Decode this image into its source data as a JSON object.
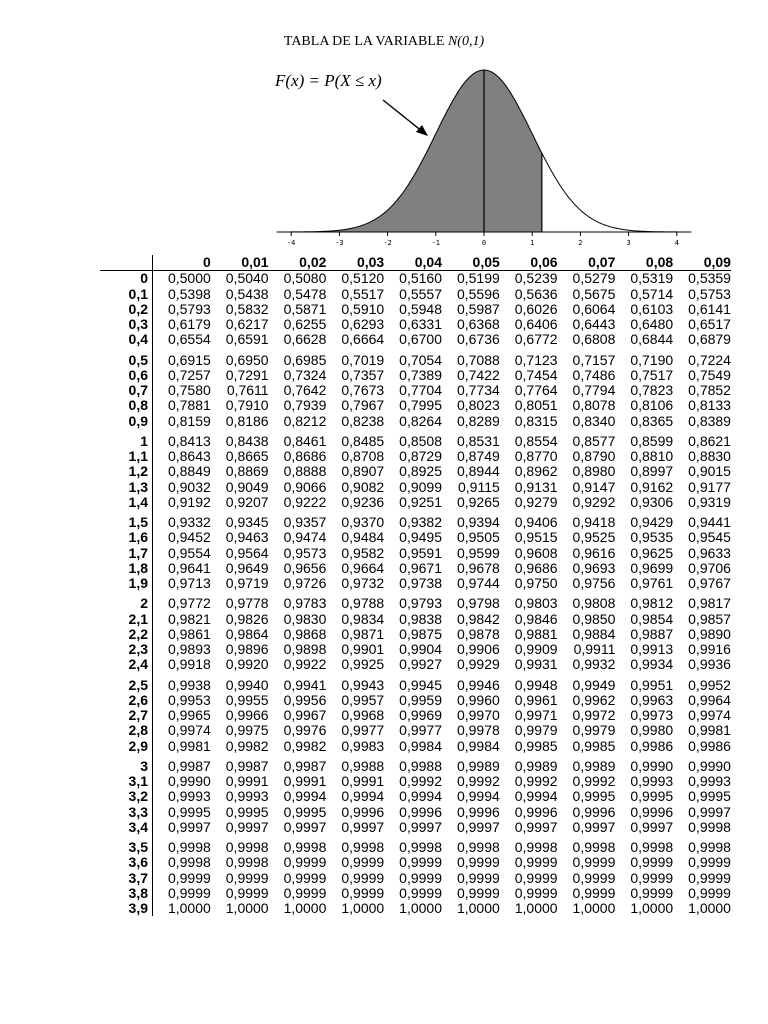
{
  "title": {
    "text": "TABLA DE LA VARIABLE",
    "dist": "N(0,1)"
  },
  "figure": {
    "formula": "F(x) = P(X ≤ x)",
    "shade_upper_bound": 1.2,
    "axis_ticks": [
      "-4",
      "-3",
      "-2",
      "-1",
      "0",
      "1",
      "2",
      "3",
      "4"
    ],
    "fill_color": "#808080"
  },
  "table": {
    "col_headers": [
      "0",
      "0,01",
      "0,02",
      "0,03",
      "0,04",
      "0,05",
      "0,06",
      "0,07",
      "0,08",
      "0,09"
    ],
    "rows": [
      {
        "z": "0",
        "v": [
          "0,5000",
          "0,5040",
          "0,5080",
          "0,5120",
          "0,5160",
          "0,5199",
          "0,5239",
          "0,5279",
          "0,5319",
          "0,5359"
        ]
      },
      {
        "z": "0,1",
        "v": [
          "0,5398",
          "0,5438",
          "0,5478",
          "0,5517",
          "0,5557",
          "0,5596",
          "0,5636",
          "0,5675",
          "0,5714",
          "0,5753"
        ]
      },
      {
        "z": "0,2",
        "v": [
          "0,5793",
          "0,5832",
          "0,5871",
          "0,5910",
          "0,5948",
          "0,5987",
          "0,6026",
          "0,6064",
          "0,6103",
          "0,6141"
        ]
      },
      {
        "z": "0,3",
        "v": [
          "0,6179",
          "0,6217",
          "0,6255",
          "0,6293",
          "0,6331",
          "0,6368",
          "0,6406",
          "0,6443",
          "0,6480",
          "0,6517"
        ]
      },
      {
        "z": "0,4",
        "v": [
          "0,6554",
          "0,6591",
          "0,6628",
          "0,6664",
          "0,6700",
          "0,6736",
          "0,6772",
          "0,6808",
          "0,6844",
          "0,6879"
        ]
      },
      {
        "z": "0,5",
        "v": [
          "0,6915",
          "0,6950",
          "0,6985",
          "0,7019",
          "0,7054",
          "0,7088",
          "0,7123",
          "0,7157",
          "0,7190",
          "0,7224"
        ]
      },
      {
        "z": "0,6",
        "v": [
          "0,7257",
          "0,7291",
          "0,7324",
          "0,7357",
          "0,7389",
          "0,7422",
          "0,7454",
          "0,7486",
          "0,7517",
          "0,7549"
        ]
      },
      {
        "z": "0,7",
        "v": [
          "0,7580",
          "0,7611",
          "0,7642",
          "0,7673",
          "0,7704",
          "0,7734",
          "0,7764",
          "0,7794",
          "0,7823",
          "0,7852"
        ]
      },
      {
        "z": "0,8",
        "v": [
          "0,7881",
          "0,7910",
          "0,7939",
          "0,7967",
          "0,7995",
          "0,8023",
          "0,8051",
          "0,8078",
          "0,8106",
          "0,8133"
        ]
      },
      {
        "z": "0,9",
        "v": [
          "0,8159",
          "0,8186",
          "0,8212",
          "0,8238",
          "0,8264",
          "0,8289",
          "0,8315",
          "0,8340",
          "0,8365",
          "0,8389"
        ]
      },
      {
        "z": "1",
        "v": [
          "0,8413",
          "0,8438",
          "0,8461",
          "0,8485",
          "0,8508",
          "0,8531",
          "0,8554",
          "0,8577",
          "0,8599",
          "0,8621"
        ]
      },
      {
        "z": "1,1",
        "v": [
          "0,8643",
          "0,8665",
          "0,8686",
          "0,8708",
          "0,8729",
          "0,8749",
          "0,8770",
          "0,8790",
          "0,8810",
          "0,8830"
        ]
      },
      {
        "z": "1,2",
        "v": [
          "0,8849",
          "0,8869",
          "0,8888",
          "0,8907",
          "0,8925",
          "0,8944",
          "0,8962",
          "0,8980",
          "0,8997",
          "0,9015"
        ]
      },
      {
        "z": "1,3",
        "v": [
          "0,9032",
          "0,9049",
          "0,9066",
          "0,9082",
          "0,9099",
          "0,9115",
          "0,9131",
          "0,9147",
          "0,9162",
          "0,9177"
        ]
      },
      {
        "z": "1,4",
        "v": [
          "0,9192",
          "0,9207",
          "0,9222",
          "0,9236",
          "0,9251",
          "0,9265",
          "0,9279",
          "0,9292",
          "0,9306",
          "0,9319"
        ]
      },
      {
        "z": "1,5",
        "v": [
          "0,9332",
          "0,9345",
          "0,9357",
          "0,9370",
          "0,9382",
          "0,9394",
          "0,9406",
          "0,9418",
          "0,9429",
          "0,9441"
        ]
      },
      {
        "z": "1,6",
        "v": [
          "0,9452",
          "0,9463",
          "0,9474",
          "0,9484",
          "0,9495",
          "0,9505",
          "0,9515",
          "0,9525",
          "0,9535",
          "0,9545"
        ]
      },
      {
        "z": "1,7",
        "v": [
          "0,9554",
          "0,9564",
          "0,9573",
          "0,9582",
          "0,9591",
          "0,9599",
          "0,9608",
          "0,9616",
          "0,9625",
          "0,9633"
        ]
      },
      {
        "z": "1,8",
        "v": [
          "0,9641",
          "0,9649",
          "0,9656",
          "0,9664",
          "0,9671",
          "0,9678",
          "0,9686",
          "0,9693",
          "0,9699",
          "0,9706"
        ]
      },
      {
        "z": "1,9",
        "v": [
          "0,9713",
          "0,9719",
          "0,9726",
          "0,9732",
          "0,9738",
          "0,9744",
          "0,9750",
          "0,9756",
          "0,9761",
          "0,9767"
        ]
      },
      {
        "z": "2",
        "v": [
          "0,9772",
          "0,9778",
          "0,9783",
          "0,9788",
          "0,9793",
          "0,9798",
          "0,9803",
          "0,9808",
          "0,9812",
          "0,9817"
        ]
      },
      {
        "z": "2,1",
        "v": [
          "0,9821",
          "0,9826",
          "0,9830",
          "0,9834",
          "0,9838",
          "0,9842",
          "0,9846",
          "0,9850",
          "0,9854",
          "0,9857"
        ]
      },
      {
        "z": "2,2",
        "v": [
          "0,9861",
          "0,9864",
          "0,9868",
          "0,9871",
          "0,9875",
          "0,9878",
          "0,9881",
          "0,9884",
          "0,9887",
          "0,9890"
        ]
      },
      {
        "z": "2,3",
        "v": [
          "0,9893",
          "0,9896",
          "0,9898",
          "0,9901",
          "0,9904",
          "0,9906",
          "0,9909",
          "0,9911",
          "0,9913",
          "0,9916"
        ]
      },
      {
        "z": "2,4",
        "v": [
          "0,9918",
          "0,9920",
          "0,9922",
          "0,9925",
          "0,9927",
          "0,9929",
          "0,9931",
          "0,9932",
          "0,9934",
          "0,9936"
        ]
      },
      {
        "z": "2,5",
        "v": [
          "0,9938",
          "0,9940",
          "0,9941",
          "0,9943",
          "0,9945",
          "0,9946",
          "0,9948",
          "0,9949",
          "0,9951",
          "0,9952"
        ]
      },
      {
        "z": "2,6",
        "v": [
          "0,9953",
          "0,9955",
          "0,9956",
          "0,9957",
          "0,9959",
          "0,9960",
          "0,9961",
          "0,9962",
          "0,9963",
          "0,9964"
        ]
      },
      {
        "z": "2,7",
        "v": [
          "0,9965",
          "0,9966",
          "0,9967",
          "0,9968",
          "0,9969",
          "0,9970",
          "0,9971",
          "0,9972",
          "0,9973",
          "0,9974"
        ]
      },
      {
        "z": "2,8",
        "v": [
          "0,9974",
          "0,9975",
          "0,9976",
          "0,9977",
          "0,9977",
          "0,9978",
          "0,9979",
          "0,9979",
          "0,9980",
          "0,9981"
        ]
      },
      {
        "z": "2,9",
        "v": [
          "0,9981",
          "0,9982",
          "0,9982",
          "0,9983",
          "0,9984",
          "0,9984",
          "0,9985",
          "0,9985",
          "0,9986",
          "0,9986"
        ]
      },
      {
        "z": "3",
        "v": [
          "0,9987",
          "0,9987",
          "0,9987",
          "0,9988",
          "0,9988",
          "0,9989",
          "0,9989",
          "0,9989",
          "0,9990",
          "0,9990"
        ]
      },
      {
        "z": "3,1",
        "v": [
          "0,9990",
          "0,9991",
          "0,9991",
          "0,9991",
          "0,9992",
          "0,9992",
          "0,9992",
          "0,9992",
          "0,9993",
          "0,9993"
        ]
      },
      {
        "z": "3,2",
        "v": [
          "0,9993",
          "0,9993",
          "0,9994",
          "0,9994",
          "0,9994",
          "0,9994",
          "0,9994",
          "0,9995",
          "0,9995",
          "0,9995"
        ]
      },
      {
        "z": "3,3",
        "v": [
          "0,9995",
          "0,9995",
          "0,9995",
          "0,9996",
          "0,9996",
          "0,9996",
          "0,9996",
          "0,9996",
          "0,9996",
          "0,9997"
        ]
      },
      {
        "z": "3,4",
        "v": [
          "0,9997",
          "0,9997",
          "0,9997",
          "0,9997",
          "0,9997",
          "0,9997",
          "0,9997",
          "0,9997",
          "0,9997",
          "0,9998"
        ]
      },
      {
        "z": "3,5",
        "v": [
          "0,9998",
          "0,9998",
          "0,9998",
          "0,9998",
          "0,9998",
          "0,9998",
          "0,9998",
          "0,9998",
          "0,9998",
          "0,9998"
        ]
      },
      {
        "z": "3,6",
        "v": [
          "0,9998",
          "0,9998",
          "0,9999",
          "0,9999",
          "0,9999",
          "0,9999",
          "0,9999",
          "0,9999",
          "0,9999",
          "0,9999"
        ]
      },
      {
        "z": "3,7",
        "v": [
          "0,9999",
          "0,9999",
          "0,9999",
          "0,9999",
          "0,9999",
          "0,9999",
          "0,9999",
          "0,9999",
          "0,9999",
          "0,9999"
        ]
      },
      {
        "z": "3,8",
        "v": [
          "0,9999",
          "0,9999",
          "0,9999",
          "0,9999",
          "0,9999",
          "0,9999",
          "0,9999",
          "0,9999",
          "0,9999",
          "0,9999"
        ]
      },
      {
        "z": "3,9",
        "v": [
          "1,0000",
          "1,0000",
          "1,0000",
          "1,0000",
          "1,0000",
          "1,0000",
          "1,0000",
          "1,0000",
          "1,0000",
          "1,0000"
        ]
      }
    ]
  }
}
